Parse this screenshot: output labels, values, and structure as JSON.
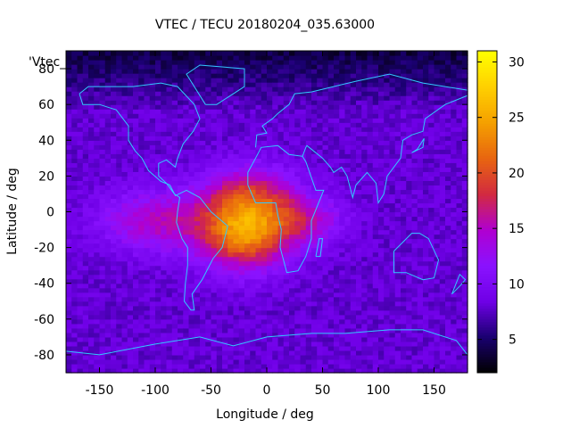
{
  "chart_data": {
    "type": "heatmap",
    "title": "VTEC / TECU 20180204_035.63000",
    "xlabel": "Longitude / deg",
    "ylabel": "Latitude / deg",
    "xlim": [
      -180,
      180
    ],
    "ylim": [
      -90,
      90
    ],
    "x_ticks": [
      -150,
      -100,
      -50,
      0,
      50,
      100,
      150
    ],
    "y_ticks": [
      -80,
      -60,
      -40,
      -20,
      0,
      20,
      40,
      60,
      80
    ],
    "colorbar": {
      "min": 2,
      "max": 31,
      "ticks": [
        5,
        10,
        15,
        20,
        25,
        30
      ]
    },
    "colormap": [
      "#000000",
      "#1a0070",
      "#6f00e6",
      "#8a12ff",
      "#b000d0",
      "#d22a40",
      "#e86510",
      "#f5a000",
      "#ffd000",
      "#ffff00"
    ],
    "legend_label": "'Vtec_",
    "coastline_color": "#33c9ff",
    "regions": [
      {
        "lon": -20,
        "lat": -12,
        "sigma_lon": 28,
        "sigma_lat": 14,
        "peak": 15
      },
      {
        "lon": -15,
        "lat": 10,
        "sigma_lon": 30,
        "sigma_lat": 12,
        "peak": 8
      },
      {
        "lon": -100,
        "lat": -5,
        "sigma_lon": 35,
        "sigma_lat": 12,
        "peak": 7
      },
      {
        "lon": 35,
        "lat": -5,
        "sigma_lon": 25,
        "sigma_lat": 10,
        "peak": 6
      }
    ],
    "background_tec": 8
  }
}
